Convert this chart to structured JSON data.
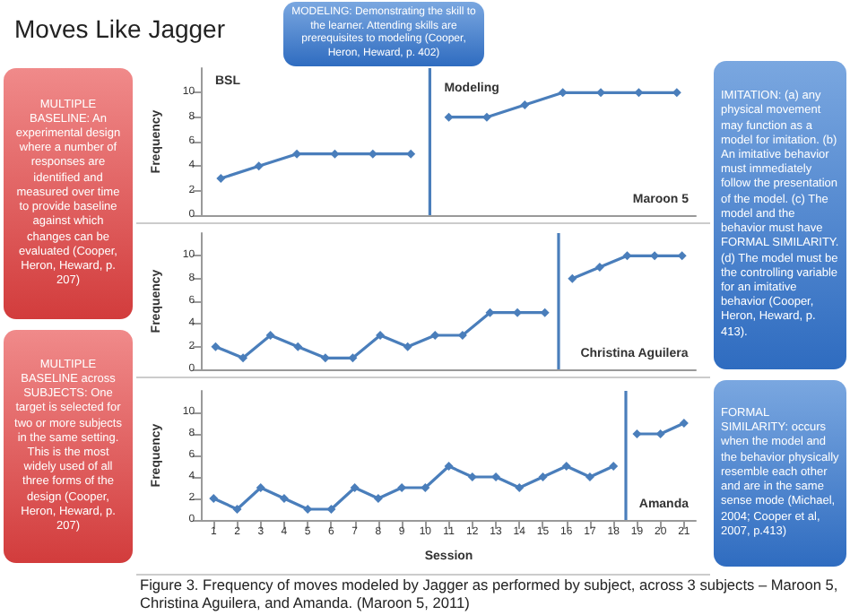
{
  "chart_data": [
    {
      "type": "line",
      "title": "Moves Like Jagger",
      "ylabel": "Frequency",
      "categories": [
        null,
        null,
        null,
        null,
        null,
        null,
        null,
        null,
        null,
        null,
        null,
        null,
        null
      ],
      "ylim": [
        0,
        12
      ],
      "yticks": [
        0,
        2,
        4,
        6,
        8,
        10
      ],
      "tick_labels": "y",
      "legend": false,
      "grid": false,
      "marker": "diamond",
      "line_style": "solid",
      "series": [
        {
          "name": "Maroon 5",
          "color": "#4a7ebb",
          "values": [
            3,
            4,
            5,
            5,
            5,
            5,
            null,
            null,
            null,
            null,
            null,
            null,
            null
          ]
        },
        {
          "color": "#4a7ebb",
          "values": [
            null,
            null,
            null,
            null,
            null,
            null,
            8,
            8,
            9,
            10,
            10,
            10,
            10
          ]
        }
      ],
      "annotations": [
        "BSL",
        "Modeling"
      ]
    },
    {
      "type": "line",
      "ylabel": "Frequency",
      "categories": [
        null,
        null,
        null,
        null,
        null,
        null,
        null,
        null,
        null,
        null,
        null,
        null,
        null,
        null,
        null,
        null,
        null,
        null
      ],
      "ylim": [
        0,
        12
      ],
      "yticks": [
        0,
        2,
        4,
        6,
        8,
        10
      ],
      "tick_labels": "y",
      "legend": false,
      "grid": false,
      "marker": "diamond",
      "line_style": "solid",
      "series": [
        {
          "name": "Christina Aguilera",
          "color": "#4a7ebb",
          "values": [
            2,
            1,
            3,
            2,
            1,
            1,
            3,
            2,
            3,
            3,
            5,
            5,
            5,
            null,
            null,
            null,
            null,
            null
          ]
        },
        {
          "color": "#4a7ebb",
          "values": [
            null,
            null,
            null,
            null,
            null,
            null,
            null,
            null,
            null,
            null,
            null,
            null,
            null,
            8,
            9,
            10,
            10,
            10
          ]
        }
      ]
    },
    {
      "type": "line",
      "ylabel": "Frequency",
      "xlabel": "Session",
      "x": [
        1,
        2,
        3,
        4,
        5,
        6,
        7,
        8,
        9,
        10,
        11,
        12,
        13,
        14,
        15,
        16,
        17,
        18,
        19,
        20,
        21
      ],
      "xlim": [
        0.5,
        21.5
      ],
      "xticks": [
        1,
        2,
        3,
        4,
        5,
        6,
        7,
        8,
        9,
        10,
        11,
        12,
        13,
        14,
        15,
        16,
        17,
        18,
        19,
        20,
        21
      ],
      "ylim": [
        0,
        12
      ],
      "yticks": [
        0,
        2,
        4,
        6,
        8,
        10
      ],
      "legend": false,
      "grid": false,
      "marker": "diamond",
      "line_style": "solid",
      "series": [
        {
          "name": "Amanda",
          "color": "#4a7ebb",
          "values": [
            2,
            1,
            3,
            2,
            1,
            1,
            3,
            2,
            3,
            3,
            5,
            4,
            4,
            3,
            4,
            5,
            4,
            5,
            null,
            null,
            null
          ]
        },
        {
          "color": "#4a7ebb",
          "values": [
            null,
            null,
            null,
            null,
            null,
            null,
            null,
            null,
            null,
            null,
            null,
            null,
            null,
            null,
            null,
            null,
            null,
            null,
            8,
            8,
            9
          ]
        }
      ],
      "ref_lines": [
        {
          "axis": "x",
          "value": 18.5,
          "color": "#4a7ebb"
        }
      ]
    },
    {
      "type": "other",
      "annotations": [
        "MODELING: Demonstrating the skill to the learner. Attending skills are prerequisites to modeling (Cooper, Heron, Heward, p. 402)",
        "MULTIPLE BASELINE: An experimental design where a number of responses are identified and measured over time to provide baseline against which changes can be evaluated (Cooper, Heron, Heward, p. 207)",
        "MULTIPLE BASELINE across SUBJECTS: One target is selected for two or more subjects in the same setting. This is the most widely used of all three forms of the design (Cooper, Heron, Heward, p. 207)",
        "IMITATION: (a) any physical movement may function as a model for imitation. (b) An imitative behavior must immediately follow the presentation of the model. (c) The model and the behavior must have FORMAL SIMILARITY. (d) The model must be the controlling variable for an imitative behavior (Cooper, Heron, Heward, p. 413).",
        "FORMAL SIMILARITY: occurs when the model and the behavior physically resemble each other and are in the same sense mode (Michael, 2004; Cooper et al, 2007, p.413)",
        "Figure 3. Frequency of moves modeled by Jagger as performed by subject, across 3 subjects – Maroon 5, Christina Aguilera, and Amanda. (Maroon 5, 2011)"
      ]
    }
  ]
}
